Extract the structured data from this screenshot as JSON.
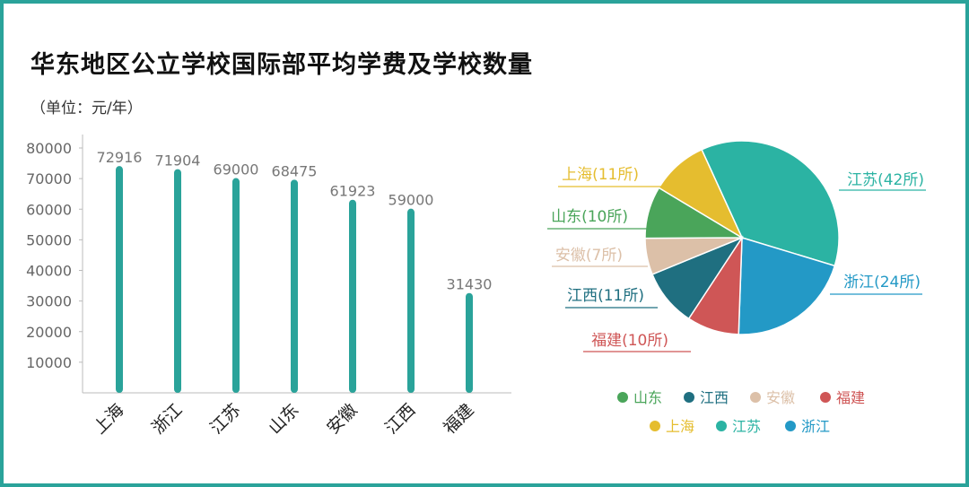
{
  "title": "华东地区公立学校国际部平均学费及学校数量",
  "unit": "（单位：元/年）",
  "colors": {
    "frame": "#2aa39a",
    "bar": "#2aa39a",
    "jiangsu": "#2bb3a3",
    "zhejiang": "#2399c6",
    "fujian": "#cf5656",
    "jiangxi": "#1f6f80",
    "anhui": "#dcc0a8",
    "shandong": "#4aa55a",
    "shanghai": "#e5bd2f"
  },
  "chart_data": [
    {
      "type": "bar",
      "categories": [
        "上海",
        "浙江",
        "江苏",
        "山东",
        "安徽",
        "江西",
        "福建"
      ],
      "values": [
        72916,
        71904,
        69000,
        68475,
        61923,
        59000,
        31430
      ],
      "ylim": [
        0,
        80000
      ],
      "yticks": [
        10000,
        20000,
        30000,
        40000,
        50000,
        60000,
        70000,
        80000
      ]
    },
    {
      "type": "pie",
      "slices": [
        {
          "name": "江苏",
          "label": "江苏(42所)",
          "value": 42,
          "color": "#2bb3a3"
        },
        {
          "name": "浙江",
          "label": "浙江(24所)",
          "value": 24,
          "color": "#2399c6"
        },
        {
          "name": "福建",
          "label": "福建(10所)",
          "value": 10,
          "color": "#cf5656"
        },
        {
          "name": "江西",
          "label": "江西(11所)",
          "value": 11,
          "color": "#1f6f80"
        },
        {
          "name": "安徽",
          "label": "安徽(7所)",
          "value": 7,
          "color": "#dcc0a8"
        },
        {
          "name": "山东",
          "label": "山东(10所)",
          "value": 10,
          "color": "#4aa55a"
        },
        {
          "name": "上海",
          "label": "上海(11所)",
          "value": 11,
          "color": "#e5bd2f"
        }
      ],
      "legend": {
        "rows": [
          [
            "山东",
            "江西",
            "安徽",
            "福建"
          ],
          [
            "上海",
            "江苏",
            "浙江"
          ]
        ]
      }
    }
  ]
}
